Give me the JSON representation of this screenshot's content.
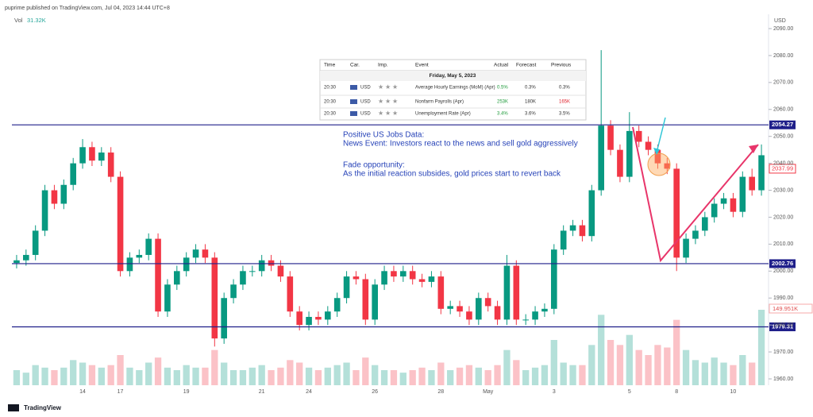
{
  "header": {
    "publisher": "puprime published on TradingView.com, Jul 04, 2023 14:44 UTC+8",
    "brand": "TradingView"
  },
  "calendar": {
    "columns": [
      "Time",
      "Car.",
      "Imp.",
      "Event",
      "Actual",
      "Forecast",
      "Previous"
    ],
    "date": "Friday, May 5, 2023",
    "rows": [
      [
        "20:30",
        "USD",
        "Average Hourly Earnings (MoM) (Apr)",
        "0.5%",
        "0.3%",
        "0.3%"
      ],
      [
        "20:30",
        "USD",
        "Nonfarm Payrolls (Apr)",
        "253K",
        "180K",
        "165K"
      ],
      [
        "20:30",
        "USD",
        "Unemployment Rate (Apr)",
        "3.4%",
        "3.6%",
        "3.5%"
      ]
    ]
  },
  "chart_data": {
    "type": "candlestick",
    "currency": "USD",
    "volume_title": "Vol",
    "volume_readout": {
      "value": 31.32,
      "label": "31.32K"
    },
    "volume_last": {
      "value": 149.951,
      "label": "149.951K"
    },
    "up_color": "#089981",
    "down_color": "#f23645",
    "level_color": "#1f1f8a",
    "grid": false,
    "annotations": [
      "Positive US Jobs Data:",
      "News Event: Investors react to the news and sell gold aggressively",
      "Fade opportunity:",
      "As the initial reaction subsides, gold prices start to revert back"
    ],
    "levels": [
      2054.27,
      2002.76,
      1979.31
    ],
    "last_price": 2037.99,
    "ylim": [
      1957.05,
      2092.95
    ],
    "yticks": [
      {
        "value": 1960,
        "label": "1960.00"
      },
      {
        "value": 1970,
        "label": "1970.00"
      },
      {
        "value": 1980,
        "label": "1980.00"
      },
      {
        "value": 1990,
        "label": "1990.00"
      },
      {
        "value": 2000,
        "label": "2000.00"
      },
      {
        "value": 2010,
        "label": "2010.00"
      },
      {
        "value": 2020,
        "label": "2020.00"
      },
      {
        "value": 2030,
        "label": "2030.00"
      },
      {
        "value": 2040,
        "label": "2040.00"
      },
      {
        "value": 2050,
        "label": "2050.00"
      },
      {
        "value": 2060,
        "label": "2060.00"
      },
      {
        "value": 2070,
        "label": "2070.00"
      },
      {
        "value": 2080,
        "label": "2080.00"
      },
      {
        "value": 2090,
        "label": "2090.00"
      }
    ],
    "categories": [
      null,
      null,
      null,
      null,
      null,
      null,
      null,
      "14",
      null,
      null,
      null,
      "17",
      null,
      null,
      null,
      null,
      null,
      null,
      "19",
      null,
      null,
      null,
      null,
      null,
      null,
      null,
      "21",
      null,
      null,
      null,
      null,
      "24",
      null,
      null,
      null,
      null,
      null,
      null,
      "26",
      null,
      null,
      null,
      null,
      null,
      null,
      "28",
      null,
      null,
      null,
      null,
      "May",
      null,
      null,
      null,
      null,
      null,
      null,
      "3",
      null,
      null,
      null,
      null,
      null,
      null,
      null,
      "5",
      null,
      null,
      null,
      null,
      "8",
      null,
      null,
      null,
      null,
      null,
      "10",
      null,
      null,
      null
    ],
    "open": [
      2003,
      2004,
      2006,
      2015,
      2030,
      2025,
      2032,
      2040,
      2046,
      2041,
      2044,
      2035,
      2000,
      2005,
      2006,
      2012,
      1985,
      1995,
      2000,
      2005,
      2008,
      2005,
      1975,
      1990,
      1995,
      2000,
      2000,
      2004,
      2002,
      1998,
      1985,
      1980,
      1983,
      1982,
      1985,
      1990,
      1998,
      1997,
      1982,
      1995,
      2000,
      1998,
      2000,
      1997,
      1996,
      1998,
      1986,
      1987,
      1985,
      1982,
      1990,
      1987,
      1982,
      2002,
      1982,
      1982,
      1985,
      1986,
      2008,
      2015,
      2017,
      2013,
      2030,
      2054,
      2045,
      2035,
      2052,
      2048,
      2045,
      2040,
      2038,
      2005,
      2012,
      2015,
      2020,
      2025,
      2027,
      2022,
      2035,
      2030
    ],
    "high": [
      2006,
      2008,
      2017,
      2032,
      2032,
      2034,
      2042,
      2049,
      2048,
      2046,
      2046,
      2037,
      2007,
      2008,
      2014,
      2014,
      1997,
      2002,
      2007,
      2010,
      2010,
      2007,
      1992,
      1997,
      2002,
      2002,
      2006,
      2006,
      2004,
      2000,
      1987,
      1985,
      1985,
      1987,
      1992,
      2000,
      2000,
      1999,
      1997,
      2002,
      2002,
      2002,
      2002,
      1999,
      2000,
      2000,
      1989,
      1989,
      1987,
      1992,
      1992,
      1989,
      2006,
      2004,
      1984,
      1987,
      1988,
      2010,
      2017,
      2019,
      2019,
      2032,
      2082,
      2056,
      2047,
      2059,
      2054,
      2050,
      2047,
      2042,
      2040,
      2014,
      2017,
      2022,
      2027,
      2029,
      2029,
      2037,
      2038,
      2047
    ],
    "low": [
      2001,
      2002,
      2004,
      2013,
      2023,
      2023,
      2030,
      2038,
      2039,
      2039,
      2033,
      1998,
      1998,
      2003,
      2004,
      1983,
      1983,
      1993,
      1998,
      2003,
      2003,
      1972,
      1973,
      1988,
      1993,
      1998,
      1998,
      2000,
      1996,
      1983,
      1978,
      1978,
      1980,
      1980,
      1983,
      1988,
      1995,
      1980,
      1980,
      1993,
      1996,
      1996,
      1995,
      1994,
      1994,
      1984,
      1984,
      1983,
      1980,
      1980,
      1985,
      1980,
      1980,
      1980,
      1980,
      1980,
      1983,
      1984,
      2006,
      2013,
      2011,
      2011,
      2028,
      2043,
      2033,
      2033,
      2046,
      2043,
      2038,
      2036,
      2000,
      2003,
      2010,
      2013,
      2018,
      2023,
      2020,
      2020,
      2028,
      2028
    ],
    "close": [
      2004,
      2006,
      2015,
      2030,
      2025,
      2032,
      2040,
      2046,
      2041,
      2044,
      2035,
      2000,
      2005,
      2006,
      2012,
      1985,
      1995,
      2000,
      2005,
      2008,
      2005,
      1975,
      1990,
      1995,
      2000,
      2000,
      2004,
      2002,
      1998,
      1985,
      1980,
      1983,
      1982,
      1985,
      1990,
      1998,
      1997,
      1982,
      1995,
      2000,
      1998,
      2000,
      1997,
      1996,
      1998,
      1986,
      1987,
      1985,
      1982,
      1990,
      1987,
      1982,
      2002,
      1982,
      1982,
      1985,
      1986,
      2008,
      2015,
      2017,
      2013,
      2030,
      2054,
      2045,
      2035,
      2052,
      2048,
      2045,
      2040,
      2038,
      2005,
      2012,
      2015,
      2020,
      2025,
      2027,
      2022,
      2035,
      2030,
      2043
    ],
    "volume": [
      30,
      25,
      40,
      35,
      30,
      35,
      50,
      45,
      40,
      35,
      40,
      60,
      35,
      30,
      45,
      55,
      35,
      30,
      40,
      35,
      35,
      70,
      45,
      30,
      30,
      35,
      40,
      30,
      35,
      50,
      45,
      35,
      30,
      35,
      40,
      45,
      30,
      55,
      40,
      30,
      30,
      25,
      30,
      35,
      30,
      45,
      30,
      35,
      40,
      35,
      30,
      40,
      70,
      50,
      30,
      35,
      40,
      90,
      45,
      40,
      40,
      80,
      140,
      90,
      80,
      100,
      70,
      60,
      80,
      75,
      130,
      70,
      50,
      45,
      55,
      45,
      40,
      60,
      45,
      150
    ]
  }
}
